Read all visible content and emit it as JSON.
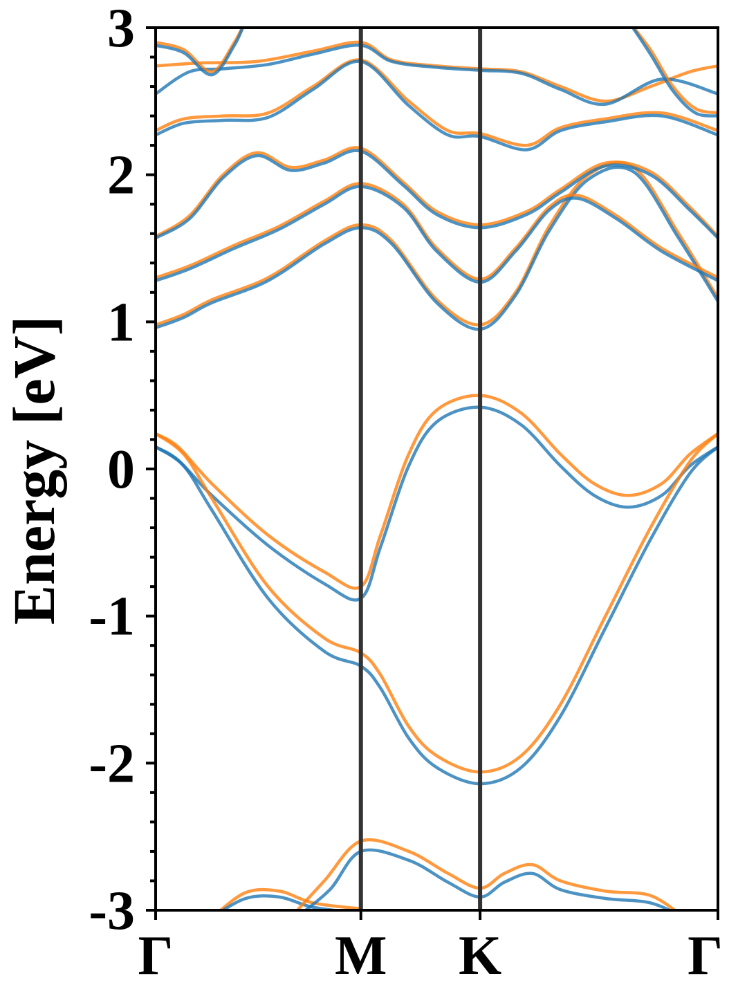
{
  "chart_data": {
    "type": "line",
    "title": "",
    "xlabel": "",
    "ylabel": "Energy [eV]",
    "ylim": [
      -3,
      3
    ],
    "yticks": [
      -3,
      -2,
      -1,
      0,
      1,
      2,
      3
    ],
    "yminor_step": 0.2,
    "grid": false,
    "legend": "none",
    "colors": {
      "blue": "#1f77b4",
      "orange": "#ff7f0e",
      "kline": "#333333"
    },
    "xaxis": {
      "range": [
        0,
        1
      ],
      "kpoints": [
        {
          "label": "Γ",
          "x": 0.0
        },
        {
          "label": "M",
          "x": 0.365
        },
        {
          "label": "K",
          "x": 0.577
        },
        {
          "label": "Γ",
          "x": 1.0
        }
      ]
    },
    "series": [
      {
        "color": "orange",
        "points": [
          [
            0.0,
            0.24
          ],
          [
            0.04,
            0.15
          ],
          [
            0.1,
            -0.1
          ],
          [
            0.2,
            -0.45
          ],
          [
            0.3,
            -0.7
          ],
          [
            0.365,
            -0.8
          ],
          [
            0.4,
            -0.45
          ],
          [
            0.45,
            0.1
          ],
          [
            0.5,
            0.4
          ],
          [
            0.577,
            0.5
          ],
          [
            0.65,
            0.38
          ],
          [
            0.72,
            0.1
          ],
          [
            0.78,
            -0.1
          ],
          [
            0.84,
            -0.18
          ],
          [
            0.9,
            -0.1
          ],
          [
            0.95,
            0.1
          ],
          [
            1.0,
            0.24
          ]
        ]
      },
      {
        "color": "blue",
        "points": [
          [
            0.0,
            0.15
          ],
          [
            0.04,
            0.06
          ],
          [
            0.1,
            -0.18
          ],
          [
            0.2,
            -0.52
          ],
          [
            0.3,
            -0.78
          ],
          [
            0.365,
            -0.88
          ],
          [
            0.4,
            -0.53
          ],
          [
            0.45,
            0.02
          ],
          [
            0.5,
            0.32
          ],
          [
            0.577,
            0.42
          ],
          [
            0.65,
            0.3
          ],
          [
            0.72,
            0.02
          ],
          [
            0.78,
            -0.18
          ],
          [
            0.84,
            -0.26
          ],
          [
            0.9,
            -0.18
          ],
          [
            0.95,
            0.02
          ],
          [
            1.0,
            0.15
          ]
        ]
      },
      {
        "color": "orange",
        "points": [
          [
            0.0,
            0.24
          ],
          [
            0.05,
            0.1
          ],
          [
            0.1,
            -0.2
          ],
          [
            0.2,
            -0.8
          ],
          [
            0.3,
            -1.15
          ],
          [
            0.365,
            -1.25
          ],
          [
            0.4,
            -1.4
          ],
          [
            0.45,
            -1.75
          ],
          [
            0.5,
            -1.95
          ],
          [
            0.577,
            -2.06
          ],
          [
            0.65,
            -1.95
          ],
          [
            0.72,
            -1.6
          ],
          [
            0.8,
            -1.0
          ],
          [
            0.88,
            -0.4
          ],
          [
            0.95,
            0.05
          ],
          [
            1.0,
            0.24
          ]
        ]
      },
      {
        "color": "blue",
        "points": [
          [
            0.0,
            0.15
          ],
          [
            0.05,
            0.02
          ],
          [
            0.1,
            -0.28
          ],
          [
            0.2,
            -0.88
          ],
          [
            0.3,
            -1.24
          ],
          [
            0.365,
            -1.34
          ],
          [
            0.4,
            -1.49
          ],
          [
            0.45,
            -1.83
          ],
          [
            0.5,
            -2.03
          ],
          [
            0.577,
            -2.14
          ],
          [
            0.65,
            -2.03
          ],
          [
            0.72,
            -1.68
          ],
          [
            0.8,
            -1.08
          ],
          [
            0.88,
            -0.48
          ],
          [
            0.95,
            -0.03
          ],
          [
            1.0,
            0.15
          ]
        ]
      },
      {
        "color": "orange",
        "points": [
          [
            0.0,
            0.98
          ],
          [
            0.05,
            1.05
          ],
          [
            0.1,
            1.15
          ],
          [
            0.2,
            1.3
          ],
          [
            0.3,
            1.55
          ],
          [
            0.365,
            1.66
          ],
          [
            0.42,
            1.55
          ],
          [
            0.5,
            1.15
          ],
          [
            0.577,
            0.98
          ],
          [
            0.64,
            1.2
          ],
          [
            0.7,
            1.65
          ],
          [
            0.77,
            2.0
          ],
          [
            0.85,
            2.05
          ],
          [
            0.93,
            1.6
          ],
          [
            1.0,
            1.16
          ]
        ]
      },
      {
        "color": "blue",
        "points": [
          [
            0.0,
            0.96
          ],
          [
            0.05,
            1.03
          ],
          [
            0.1,
            1.13
          ],
          [
            0.2,
            1.28
          ],
          [
            0.3,
            1.53
          ],
          [
            0.365,
            1.64
          ],
          [
            0.42,
            1.53
          ],
          [
            0.5,
            1.13
          ],
          [
            0.577,
            0.95
          ],
          [
            0.64,
            1.18
          ],
          [
            0.7,
            1.62
          ],
          [
            0.77,
            1.97
          ],
          [
            0.85,
            2.02
          ],
          [
            0.93,
            1.57
          ],
          [
            1.0,
            1.14
          ]
        ]
      },
      {
        "color": "orange",
        "points": [
          [
            0.0,
            1.3
          ],
          [
            0.06,
            1.38
          ],
          [
            0.14,
            1.52
          ],
          [
            0.22,
            1.65
          ],
          [
            0.3,
            1.82
          ],
          [
            0.365,
            1.94
          ],
          [
            0.44,
            1.8
          ],
          [
            0.5,
            1.5
          ],
          [
            0.577,
            1.29
          ],
          [
            0.64,
            1.5
          ],
          [
            0.7,
            1.78
          ],
          [
            0.75,
            1.86
          ],
          [
            0.82,
            1.72
          ],
          [
            0.9,
            1.5
          ],
          [
            1.0,
            1.3
          ]
        ]
      },
      {
        "color": "blue",
        "points": [
          [
            0.0,
            1.28
          ],
          [
            0.06,
            1.36
          ],
          [
            0.14,
            1.5
          ],
          [
            0.22,
            1.63
          ],
          [
            0.3,
            1.8
          ],
          [
            0.365,
            1.92
          ],
          [
            0.44,
            1.78
          ],
          [
            0.5,
            1.48
          ],
          [
            0.577,
            1.27
          ],
          [
            0.64,
            1.48
          ],
          [
            0.7,
            1.76
          ],
          [
            0.75,
            1.84
          ],
          [
            0.82,
            1.7
          ],
          [
            0.9,
            1.48
          ],
          [
            1.0,
            1.28
          ]
        ]
      },
      {
        "color": "orange",
        "points": [
          [
            0.0,
            1.58
          ],
          [
            0.06,
            1.72
          ],
          [
            0.12,
            2.0
          ],
          [
            0.18,
            2.15
          ],
          [
            0.24,
            2.05
          ],
          [
            0.3,
            2.1
          ],
          [
            0.365,
            2.18
          ],
          [
            0.44,
            1.95
          ],
          [
            0.5,
            1.75
          ],
          [
            0.577,
            1.66
          ],
          [
            0.66,
            1.75
          ],
          [
            0.72,
            1.9
          ],
          [
            0.8,
            2.08
          ],
          [
            0.88,
            2.02
          ],
          [
            0.95,
            1.78
          ],
          [
            1.0,
            1.58
          ]
        ]
      },
      {
        "color": "blue",
        "points": [
          [
            0.0,
            1.57
          ],
          [
            0.06,
            1.7
          ],
          [
            0.12,
            1.98
          ],
          [
            0.18,
            2.13
          ],
          [
            0.24,
            2.03
          ],
          [
            0.3,
            2.08
          ],
          [
            0.365,
            2.16
          ],
          [
            0.44,
            1.93
          ],
          [
            0.5,
            1.73
          ],
          [
            0.577,
            1.64
          ],
          [
            0.66,
            1.73
          ],
          [
            0.72,
            1.88
          ],
          [
            0.8,
            2.06
          ],
          [
            0.88,
            2.0
          ],
          [
            0.95,
            1.76
          ],
          [
            1.0,
            1.57
          ]
        ]
      },
      {
        "color": "orange",
        "points": [
          [
            0.0,
            2.3
          ],
          [
            0.05,
            2.38
          ],
          [
            0.12,
            2.4
          ],
          [
            0.2,
            2.42
          ],
          [
            0.28,
            2.6
          ],
          [
            0.365,
            2.78
          ],
          [
            0.45,
            2.5
          ],
          [
            0.52,
            2.3
          ],
          [
            0.577,
            2.28
          ],
          [
            0.66,
            2.2
          ],
          [
            0.72,
            2.32
          ],
          [
            0.8,
            2.38
          ],
          [
            0.9,
            2.42
          ],
          [
            1.0,
            2.3
          ]
        ]
      },
      {
        "color": "blue",
        "points": [
          [
            0.0,
            2.27
          ],
          [
            0.05,
            2.35
          ],
          [
            0.12,
            2.37
          ],
          [
            0.2,
            2.39
          ],
          [
            0.28,
            2.58
          ],
          [
            0.365,
            2.77
          ],
          [
            0.45,
            2.47
          ],
          [
            0.52,
            2.27
          ],
          [
            0.577,
            2.26
          ],
          [
            0.66,
            2.17
          ],
          [
            0.72,
            2.3
          ],
          [
            0.8,
            2.36
          ],
          [
            0.9,
            2.4
          ],
          [
            1.0,
            2.27
          ]
        ]
      },
      {
        "color": "orange",
        "points": [
          [
            0.0,
            2.74
          ],
          [
            0.08,
            2.76
          ],
          [
            0.18,
            2.77
          ],
          [
            0.28,
            2.84
          ],
          [
            0.365,
            2.9
          ],
          [
            0.42,
            2.78
          ],
          [
            0.5,
            2.74
          ],
          [
            0.577,
            2.72
          ],
          [
            0.65,
            2.7
          ],
          [
            0.72,
            2.6
          ],
          [
            0.8,
            2.5
          ],
          [
            0.88,
            2.6
          ],
          [
            0.95,
            2.7
          ],
          [
            1.0,
            2.74
          ]
        ]
      },
      {
        "color": "blue",
        "points": [
          [
            0.0,
            2.55
          ],
          [
            0.06,
            2.7
          ],
          [
            0.12,
            2.72
          ],
          [
            0.2,
            2.75
          ],
          [
            0.28,
            2.82
          ],
          [
            0.365,
            2.88
          ],
          [
            0.42,
            2.77
          ],
          [
            0.5,
            2.73
          ],
          [
            0.577,
            2.71
          ],
          [
            0.65,
            2.69
          ],
          [
            0.72,
            2.58
          ],
          [
            0.8,
            2.48
          ],
          [
            0.9,
            2.65
          ],
          [
            1.0,
            2.55
          ]
        ]
      },
      {
        "color": "orange",
        "points": [
          [
            0.0,
            2.9
          ],
          [
            0.05,
            2.85
          ],
          [
            0.1,
            2.7
          ],
          [
            0.14,
            2.9
          ],
          [
            0.16,
            3.05
          ]
        ]
      },
      {
        "color": "blue",
        "points": [
          [
            0.0,
            2.88
          ],
          [
            0.05,
            2.83
          ],
          [
            0.1,
            2.68
          ],
          [
            0.14,
            2.88
          ],
          [
            0.16,
            3.05
          ]
        ]
      },
      {
        "color": "orange",
        "points": [
          [
            0.84,
            3.05
          ],
          [
            0.88,
            2.85
          ],
          [
            0.92,
            2.6
          ],
          [
            0.96,
            2.45
          ],
          [
            1.0,
            2.42
          ]
        ]
      },
      {
        "color": "blue",
        "points": [
          [
            0.84,
            3.05
          ],
          [
            0.88,
            2.82
          ],
          [
            0.92,
            2.57
          ],
          [
            0.96,
            2.42
          ],
          [
            1.0,
            2.4
          ]
        ]
      },
      {
        "color": "orange",
        "points": [
          [
            0.1,
            -3.05
          ],
          [
            0.16,
            -2.88
          ],
          [
            0.22,
            -2.87
          ],
          [
            0.28,
            -2.95
          ],
          [
            0.365,
            -2.99
          ]
        ]
      },
      {
        "color": "blue",
        "points": [
          [
            0.1,
            -3.05
          ],
          [
            0.16,
            -2.92
          ],
          [
            0.22,
            -2.91
          ],
          [
            0.28,
            -2.98
          ],
          [
            0.365,
            -3.02
          ]
        ]
      },
      {
        "color": "orange",
        "points": [
          [
            0.24,
            -3.05
          ],
          [
            0.3,
            -2.8
          ],
          [
            0.365,
            -2.53
          ],
          [
            0.45,
            -2.6
          ],
          [
            0.52,
            -2.75
          ],
          [
            0.577,
            -2.85
          ],
          [
            0.62,
            -2.75
          ],
          [
            0.67,
            -2.69
          ],
          [
            0.72,
            -2.8
          ],
          [
            0.8,
            -2.87
          ],
          [
            0.88,
            -2.9
          ],
          [
            0.94,
            -3.05
          ]
        ]
      },
      {
        "color": "blue",
        "points": [
          [
            0.25,
            -3.05
          ],
          [
            0.31,
            -2.86
          ],
          [
            0.365,
            -2.6
          ],
          [
            0.45,
            -2.66
          ],
          [
            0.52,
            -2.81
          ],
          [
            0.577,
            -2.91
          ],
          [
            0.62,
            -2.81
          ],
          [
            0.67,
            -2.75
          ],
          [
            0.72,
            -2.86
          ],
          [
            0.8,
            -2.92
          ],
          [
            0.88,
            -2.95
          ],
          [
            0.94,
            -3.05
          ]
        ]
      }
    ]
  }
}
